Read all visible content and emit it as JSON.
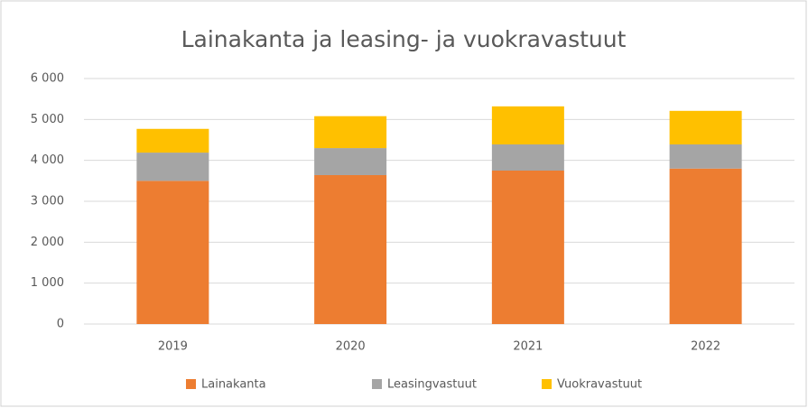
{
  "chart_data": {
    "type": "stacked-bar",
    "title": "Lainakanta ja leasing- ja vuokravastuut",
    "categories": [
      "2019",
      "2020",
      "2021",
      "2022"
    ],
    "series": [
      {
        "name": "Lainakanta",
        "color": "#ed7d31",
        "values": [
          3500,
          3640,
          3750,
          3800
        ]
      },
      {
        "name": "Leasingvastuut",
        "color": "#a5a5a5",
        "values": [
          690,
          660,
          640,
          590
        ]
      },
      {
        "name": "Vuokravastuut",
        "color": "#ffc000",
        "values": [
          580,
          780,
          930,
          820
        ]
      }
    ],
    "ylim": [
      0,
      6000
    ],
    "yticks": [
      0,
      {
        "value": 1000,
        "label": "1 000"
      },
      {
        "value": 2000,
        "label": "2 000"
      },
      {
        "value": 3000,
        "label": "3 000"
      },
      {
        "value": 4000,
        "label": "4 000"
      },
      {
        "value": 5000,
        "label": "5 000"
      },
      {
        "value": 6000,
        "label": "6 000"
      }
    ],
    "grid": true,
    "legend": "bottom"
  }
}
